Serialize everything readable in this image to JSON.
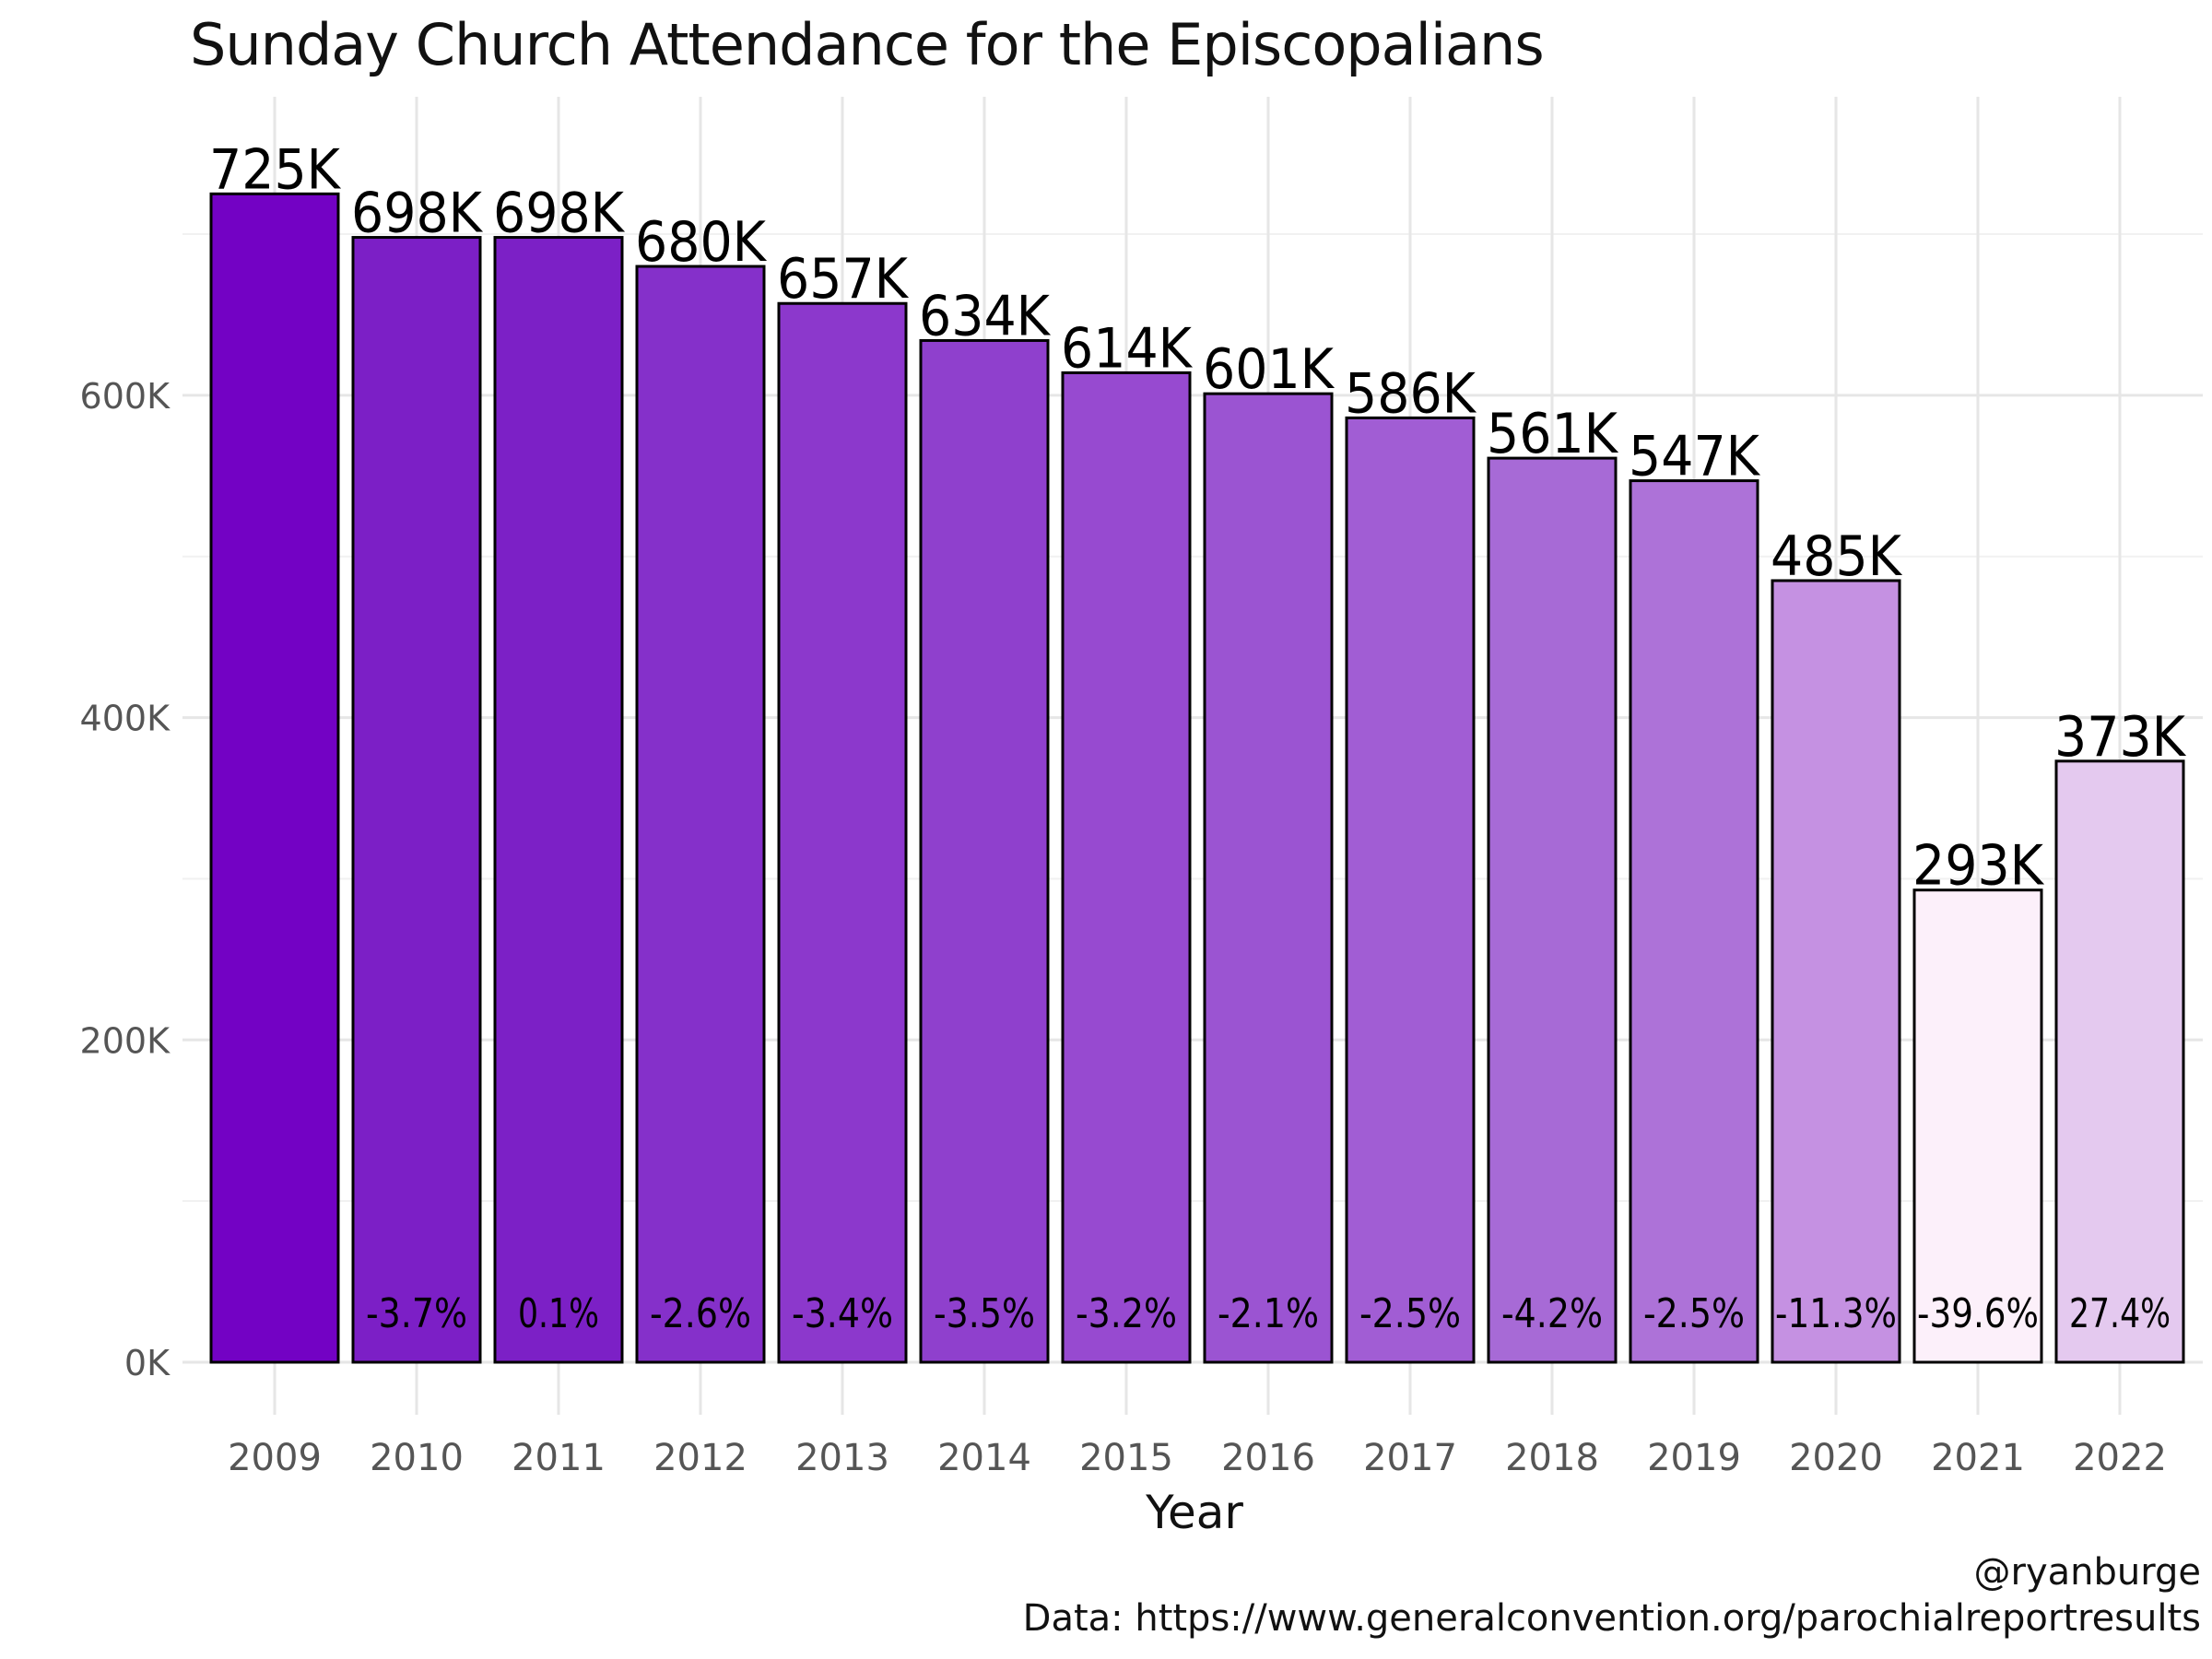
{
  "chart_data": {
    "type": "bar",
    "title": "Sunday Church Attendance for the Episcopalians",
    "xlabel": "Year",
    "ylabel": "",
    "categories": [
      "2009",
      "2010",
      "2011",
      "2012",
      "2013",
      "2014",
      "2015",
      "2016",
      "2017",
      "2018",
      "2019",
      "2020",
      "2021",
      "2022"
    ],
    "values": [
      725,
      698,
      698,
      680,
      657,
      634,
      614,
      601,
      586,
      561,
      547,
      485,
      293,
      373
    ],
    "value_unit": "thousands",
    "value_labels": [
      "725K",
      "698K",
      "698K",
      "680K",
      "657K",
      "634K",
      "614K",
      "601K",
      "586K",
      "561K",
      "547K",
      "485K",
      "293K",
      "373K"
    ],
    "pct_change_labels": [
      "",
      "-3.7%",
      "0.1%",
      "-2.6%",
      "-3.4%",
      "-3.5%",
      "-3.2%",
      "-2.1%",
      "-2.5%",
      "-4.2%",
      "-2.5%",
      "-11.3%",
      "-39.6%",
      "27.4%"
    ],
    "bar_colors": [
      "#7302c4",
      "#7c1fc6",
      "#7c20c6",
      "#8530ca",
      "#8c38cc",
      "#8f40cd",
      "#974ad0",
      "#9b54d2",
      "#a15dd4",
      "#a76ad6",
      "#ad72d8",
      "#c591e2",
      "#fcf0fa",
      "#e4c9ef"
    ],
    "y_ticks": [
      0,
      200,
      400,
      600
    ],
    "y_tick_labels": [
      "0K",
      "200K",
      "400K",
      "600K"
    ],
    "ylim": [
      -30,
      790
    ],
    "grid": true,
    "legend": "none"
  },
  "captions": {
    "handle": "@ryanburge",
    "source": "Data: https://www.generalconvention.org/parochialreportresults"
  }
}
